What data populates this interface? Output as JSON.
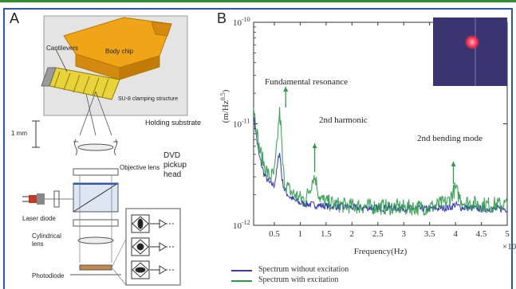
{
  "panel_a": {
    "letter": "A",
    "labels": {
      "cantilevers": "Cantilevers",
      "body_chip": "Body chip",
      "su8": "SU-8 clamping structure",
      "holding": "Holding substrate",
      "scale": "1 mm",
      "objective": "Objective lens",
      "dvd": [
        "DVD",
        "pickup",
        "head"
      ],
      "laser": "Laser diode",
      "cylindrical": [
        "Cylindrical",
        "lens"
      ],
      "photodiode": "Photodiode"
    },
    "colors": {
      "chip": "#f0a519",
      "cantilever": "#e8d33a",
      "inset_bg": "#e6e6e6"
    }
  },
  "panel_b": {
    "letter": "B",
    "annotations": {
      "fundamental": "Fundamental resonance",
      "harmonic": "2nd harmonic",
      "bending": "2nd bending mode"
    },
    "legend": [
      "Spectrum without excitation",
      "Spectrum with excitation"
    ],
    "exponent_label": "×10"
  },
  "chart_data": {
    "type": "line",
    "xlabel": "Frequency(Hz)",
    "ylabel": "(m/Hz^0.5)",
    "ylabel_main": "(m/Hz",
    "ylabel_sup": "0.5",
    "ylabel_end": ")",
    "yscale": "log",
    "xlim": [
      0.1,
      5
    ],
    "ylim": [
      1e-12,
      1e-10
    ],
    "x_ticks": [
      "0.5",
      "1",
      "1.5",
      "2",
      "2.5",
      "3",
      "3.5",
      "4",
      "4.5",
      "5"
    ],
    "x_tick_values": [
      0.5,
      1,
      1.5,
      2,
      2.5,
      3,
      3.5,
      4,
      4.5,
      5
    ],
    "y_ticks": [
      {
        "value": 1e-10,
        "base": "10",
        "exp": "-10"
      },
      {
        "value": 1e-11,
        "base": "10",
        "exp": "-11"
      },
      {
        "value": 1e-12,
        "base": "10",
        "exp": "-12"
      }
    ],
    "series": [
      {
        "name": "Spectrum without excitation",
        "color": "#3a3ab4",
        "x": [
          0.1,
          0.2,
          0.3,
          0.4,
          0.5,
          0.55,
          0.6,
          0.65,
          0.7,
          0.8,
          0.9,
          1.0,
          1.2,
          1.5,
          2.0,
          2.5,
          3.0,
          3.5,
          3.9,
          4.0,
          4.1,
          4.5,
          5.0
        ],
        "y": [
          1.2e-11,
          5e-12,
          3.2e-12,
          2.6e-12,
          2.5e-12,
          3.5e-12,
          5.5e-12,
          2.8e-12,
          2.2e-12,
          1.9e-12,
          1.75e-12,
          1.65e-12,
          1.6e-12,
          1.55e-12,
          1.5e-12,
          1.48e-12,
          1.47e-12,
          1.45e-12,
          1.5e-12,
          1.6e-12,
          1.5e-12,
          1.45e-12,
          1.45e-12
        ]
      },
      {
        "name": "Spectrum with excitation",
        "color": "#2e9a4a",
        "x": [
          0.1,
          0.2,
          0.3,
          0.4,
          0.5,
          0.55,
          0.6,
          0.63,
          0.66,
          0.7,
          0.8,
          0.9,
          1.0,
          1.1,
          1.2,
          1.25,
          1.3,
          1.35,
          1.4,
          1.5,
          1.7,
          2.0,
          2.5,
          3.0,
          3.5,
          3.85,
          3.95,
          4.0,
          4.05,
          4.15,
          4.5,
          5.0
        ],
        "y": [
          1.5e-11,
          6e-12,
          4e-12,
          3e-12,
          3.2e-12,
          6e-12,
          1.3e-11,
          9e-12,
          4e-12,
          2.6e-12,
          2.2e-12,
          2e-12,
          1.85e-12,
          1.8e-12,
          2.4e-12,
          3e-12,
          2.9e-12,
          2.1e-12,
          1.8e-12,
          1.7e-12,
          1.6e-12,
          1.55e-12,
          1.52e-12,
          1.5e-12,
          1.5e-12,
          1.7e-12,
          2.1e-12,
          2.3e-12,
          2e-12,
          1.7e-12,
          1.6e-12,
          1.6e-12
        ]
      }
    ],
    "grid": false,
    "legend_position": "bottom-left"
  }
}
